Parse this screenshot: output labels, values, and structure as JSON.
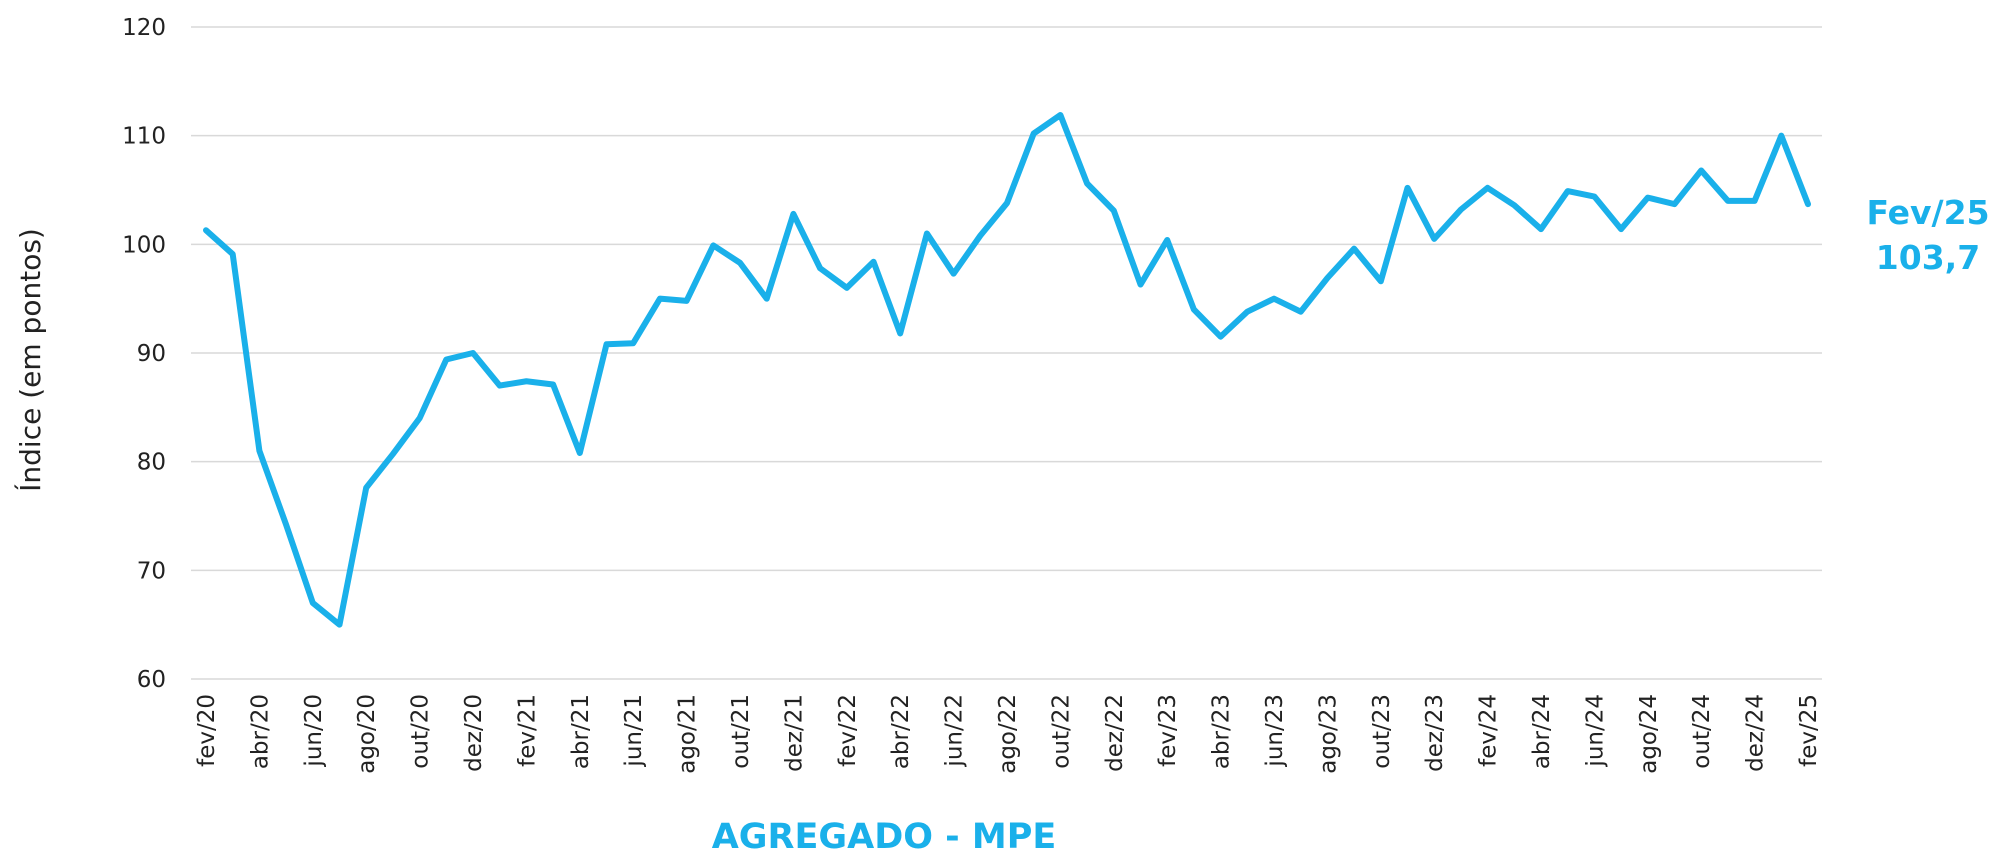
{
  "chart_data": {
    "type": "line",
    "title": "AGREGADO - MPE",
    "y_label": "Índice (em pontos)",
    "annotation": [
      "Fev/25",
      "103,7"
    ],
    "categories": [
      "fev/20",
      null,
      "abr/20",
      null,
      "jun/20",
      null,
      "ago/20",
      null,
      "out/20",
      null,
      "dez/20",
      null,
      "fev/21",
      null,
      "abr/21",
      null,
      "jun/21",
      null,
      "ago/21",
      null,
      "out/21",
      null,
      "dez/21",
      null,
      "fev/22",
      null,
      "abr/22",
      null,
      "jun/22",
      null,
      "ago/22",
      null,
      "out/22",
      null,
      "dez/22",
      null,
      "fev/23",
      null,
      "abr/23",
      null,
      "jun/23",
      null,
      "ago/23",
      null,
      "out/23",
      null,
      "dez/23",
      null,
      "fev/24",
      null,
      "abr/24",
      null,
      "jun/24",
      null,
      "ago/24",
      null,
      "out/24",
      null,
      "dez/24",
      null,
      "fev/25"
    ],
    "series": [
      {
        "name": "AGREGADO - MPE",
        "color": "#1ab0ea",
        "values": [
          101.3,
          99.1,
          81,
          74.2,
          67,
          65,
          77.6,
          80.7,
          84,
          89.4,
          90,
          87,
          87.4,
          87.1,
          80.8,
          90.8,
          90.9,
          95,
          94.8,
          99.9,
          98.3,
          95,
          102.8,
          97.8,
          96,
          98.4,
          91.8,
          101,
          97.3,
          100.8,
          103.8,
          110.2,
          111.9,
          105.6,
          103.1,
          96.3,
          100.4,
          94,
          91.5,
          93.8,
          95,
          93.8,
          96.9,
          99.6,
          96.6,
          105.2,
          100.5,
          103.2,
          105.2,
          103.6,
          101.4,
          104.9,
          104.4,
          101.4,
          104.3,
          103.7,
          106.8,
          104,
          104,
          110,
          103.7
        ]
      }
    ],
    "ylim": [
      60,
      120
    ],
    "yticks": [
      60,
      70,
      80,
      90,
      100,
      110,
      120
    ],
    "grid": true
  }
}
